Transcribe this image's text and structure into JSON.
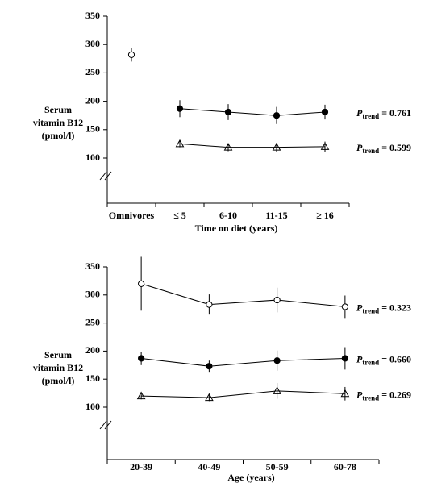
{
  "chart_data": [
    {
      "type": "line",
      "y_label": [
        "Serum",
        "vitamin B12",
        "(pmol/l)"
      ],
      "x_label": "Time on diet (years)",
      "categories": [
        "Omnivores",
        "≤ 5",
        "6-10",
        "11-15",
        "≥ 16"
      ],
      "ylim": [
        100,
        350
      ],
      "yticks": [
        100,
        150,
        200,
        250,
        300,
        350
      ],
      "series": [
        {
          "marker": "open-circle",
          "color": "#000000",
          "values": [
            282,
            null,
            null,
            null,
            null
          ],
          "errors": [
            12,
            null,
            null,
            null,
            null
          ]
        },
        {
          "marker": "filled-circle",
          "color": "#000000",
          "values": [
            null,
            187,
            181,
            175,
            181
          ],
          "errors": [
            null,
            15,
            14,
            15,
            13
          ],
          "annotation": {
            "p": "P",
            "sub": "trend",
            "text": "= 0.761"
          }
        },
        {
          "marker": "open-triangle",
          "color": "#000000",
          "values": [
            null,
            125,
            119,
            119,
            120
          ],
          "errors": [
            null,
            6,
            7,
            8,
            9
          ],
          "annotation": {
            "p": "P",
            "sub": "trend",
            "text": "= 0.599"
          }
        }
      ]
    },
    {
      "type": "line",
      "y_label": [
        "Serum",
        "vitamin B12",
        "(pmol/l)"
      ],
      "x_label": "Age (years)",
      "categories": [
        "20-39",
        "40-49",
        "50-59",
        "60-78"
      ],
      "ylim": [
        100,
        350
      ],
      "yticks": [
        100,
        150,
        200,
        250,
        300,
        350
      ],
      "series": [
        {
          "marker": "open-circle",
          "color": "#000000",
          "values": [
            320,
            283,
            291,
            279
          ],
          "errors": [
            48,
            18,
            22,
            20
          ],
          "annotation": {
            "p": "P",
            "sub": "trend",
            "text": "= 0.323"
          }
        },
        {
          "marker": "filled-circle",
          "color": "#000000",
          "values": [
            187,
            173,
            183,
            187
          ],
          "errors": [
            12,
            10,
            18,
            20
          ],
          "annotation": {
            "p": "P",
            "sub": "trend",
            "text": "= 0.660"
          }
        },
        {
          "marker": "open-triangle",
          "color": "#000000",
          "values": [
            120,
            117,
            129,
            124
          ],
          "errors": [
            6,
            6,
            14,
            12
          ],
          "annotation": {
            "p": "P",
            "sub": "trend",
            "text": "= 0.269"
          }
        }
      ]
    }
  ]
}
